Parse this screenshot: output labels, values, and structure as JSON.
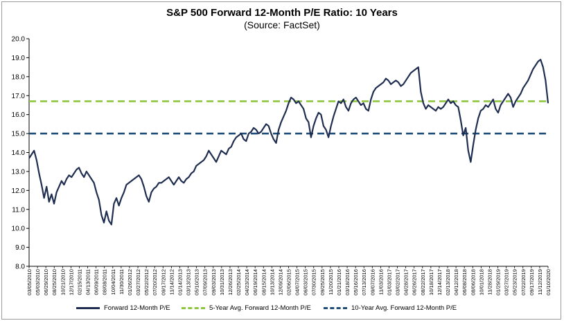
{
  "chart_data": {
    "type": "line",
    "title": "S&P 500 Forward 12-Month P/E Ratio: 10 Years",
    "subtitle": "(Source: FactSet)",
    "xlabel": "",
    "ylabel": "",
    "ylim": [
      8.0,
      20.0
    ],
    "ytick_step": 1.0,
    "yticks": [
      "8.0",
      "9.0",
      "10.0",
      "11.0",
      "12.0",
      "13.0",
      "14.0",
      "15.0",
      "16.0",
      "17.0",
      "18.0",
      "19.0",
      "20.0"
    ],
    "x_tick_labels": [
      "03/05/2010",
      "05/03/2010",
      "06/29/2010",
      "08/25/2010",
      "10/21/2010",
      "12/17/2010",
      "02/15/2011",
      "04/13/2011",
      "06/09/2011",
      "08/08/2011",
      "10/04/2011",
      "11/30/2011",
      "01/26/2012",
      "03/27/2012",
      "05/22/2012",
      "07/20/2012",
      "09/17/2012",
      "11/14/2012",
      "01/14/2013",
      "03/13/2013",
      "05/10/2013",
      "07/09/2013",
      "09/03/2013",
      "10/31/2013",
      "12/26/2013",
      "02/25/2014",
      "04/23/2014",
      "06/19/2014",
      "08/15/2014",
      "10/13/2014",
      "12/09/2014",
      "02/06/2015",
      "04/07/2015",
      "06/03/2015",
      "07/30/2015",
      "09/25/2015",
      "11/20/2015",
      "01/21/2016",
      "03/18/2016",
      "05/16/2016",
      "07/13/2016",
      "09/07/2016",
      "11/03/2016",
      "01/03/2017",
      "03/02/2017",
      "04/28/2017",
      "06/26/2017",
      "08/22/2017",
      "10/18/2017",
      "12/14/2017",
      "02/13/2018",
      "04/12/2018",
      "06/08/2018",
      "08/06/2018",
      "10/01/2018",
      "11/28/2018",
      "01/29/2019",
      "03/27/2019",
      "05/23/2019",
      "07/22/2019",
      "09/17/2019",
      "11/12/2019",
      "01/10/2020"
    ],
    "grid": false,
    "legend_position": "bottom",
    "series": [
      {
        "name": "Forward 12-Month P/E",
        "color": "#1f2d50",
        "style": "solid",
        "values": [
          13.7,
          13.9,
          14.1,
          13.6,
          12.9,
          12.3,
          11.6,
          12.2,
          11.4,
          11.8,
          11.3,
          11.9,
          12.2,
          12.5,
          12.3,
          12.6,
          12.8,
          12.7,
          12.9,
          13.1,
          13.2,
          12.9,
          12.7,
          13.0,
          12.8,
          12.6,
          12.4,
          11.9,
          11.5,
          10.7,
          10.3,
          10.9,
          10.4,
          10.2,
          11.3,
          11.6,
          11.2,
          11.6,
          11.9,
          12.3,
          12.4,
          12.5,
          12.6,
          12.7,
          12.8,
          12.6,
          12.2,
          11.7,
          11.4,
          11.9,
          12.1,
          12.2,
          12.4,
          12.4,
          12.5,
          12.6,
          12.7,
          12.5,
          12.3,
          12.5,
          12.7,
          12.5,
          12.4,
          12.6,
          12.7,
          12.9,
          13.0,
          13.3,
          13.4,
          13.5,
          13.6,
          13.8,
          14.1,
          13.9,
          13.7,
          13.5,
          13.8,
          14.1,
          14.0,
          13.9,
          14.2,
          14.3,
          14.6,
          14.8,
          14.9,
          15.0,
          14.7,
          14.6,
          15.0,
          15.1,
          15.3,
          15.2,
          15.0,
          15.1,
          15.3,
          15.5,
          15.4,
          15.0,
          14.7,
          14.5,
          15.2,
          15.6,
          15.9,
          16.2,
          16.6,
          16.9,
          16.8,
          16.6,
          16.7,
          16.5,
          16.3,
          15.8,
          15.6,
          14.8,
          15.4,
          15.8,
          16.1,
          16.0,
          15.4,
          15.2,
          14.8,
          15.4,
          15.9,
          16.3,
          16.7,
          16.6,
          16.8,
          16.4,
          16.2,
          16.6,
          16.8,
          16.9,
          16.7,
          16.5,
          16.6,
          16.3,
          16.2,
          16.8,
          17.2,
          17.4,
          17.5,
          17.6,
          17.7,
          17.9,
          17.8,
          17.6,
          17.7,
          17.8,
          17.7,
          17.5,
          17.6,
          17.8,
          18.0,
          18.2,
          18.3,
          18.4,
          18.5,
          17.2,
          16.6,
          16.3,
          16.5,
          16.4,
          16.3,
          16.2,
          16.4,
          16.3,
          16.4,
          16.6,
          16.8,
          16.6,
          16.7,
          16.5,
          16.4,
          15.7,
          14.9,
          15.3,
          14.1,
          13.5,
          14.4,
          15.2,
          15.8,
          16.2,
          16.3,
          16.5,
          16.4,
          16.6,
          16.8,
          16.3,
          16.1,
          16.5,
          16.7,
          16.9,
          17.1,
          16.9,
          16.4,
          16.7,
          16.9,
          17.1,
          17.4,
          17.6,
          17.8,
          18.1,
          18.4,
          18.6,
          18.8,
          18.9,
          18.5,
          17.8,
          16.6
        ]
      },
      {
        "name": "5-Year Avg. Forward 12-Month P/E",
        "color": "#8dc63f",
        "style": "dashed",
        "values": [
          16.7
        ]
      },
      {
        "name": "10-Year Avg. Forward 12-Month P/E",
        "color": "#1f4e79",
        "style": "dashed",
        "values": [
          15.0
        ]
      }
    ]
  }
}
